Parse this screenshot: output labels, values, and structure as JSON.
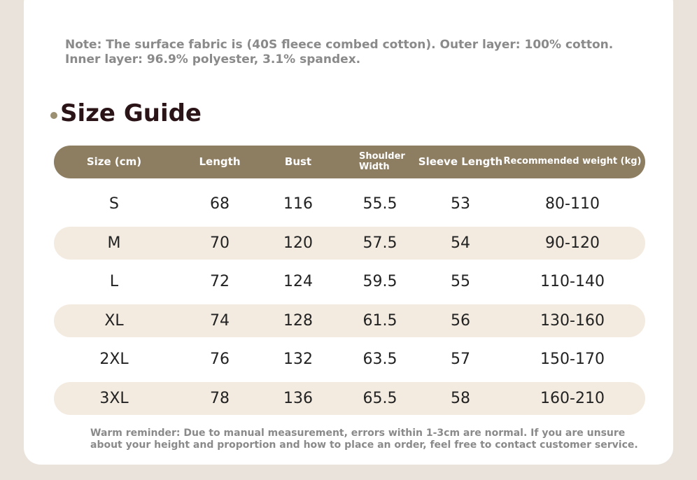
{
  "note": "Note: The surface fabric is (40S fleece combed cotton). Outer layer: 100% cotton. Inner layer: 96.9% polyester, 3.1% spandex.",
  "section_title": "Size Guide",
  "table": {
    "headers": [
      "Size (cm)",
      "Length",
      "Bust",
      "Shoulder Width",
      "Sleeve Length",
      "Recommended weight (kg)"
    ],
    "rows": [
      [
        "S",
        "68",
        "116",
        "55.5",
        "53",
        "80-110"
      ],
      [
        "M",
        "70",
        "120",
        "57.5",
        "54",
        "90-120"
      ],
      [
        "L",
        "72",
        "124",
        "59.5",
        "55",
        "110-140"
      ],
      [
        "XL",
        "74",
        "128",
        "61.5",
        "56",
        "130-160"
      ],
      [
        "2XL",
        "76",
        "132",
        "63.5",
        "57",
        "150-170"
      ],
      [
        "3XL",
        "78",
        "136",
        "65.5",
        "58",
        "160-210"
      ]
    ]
  },
  "reminder": "Warm reminder: Due to manual measurement, errors within 1-3cm are normal. If you are unsure about your height and proportion and how to place an order, feel free to contact customer service."
}
